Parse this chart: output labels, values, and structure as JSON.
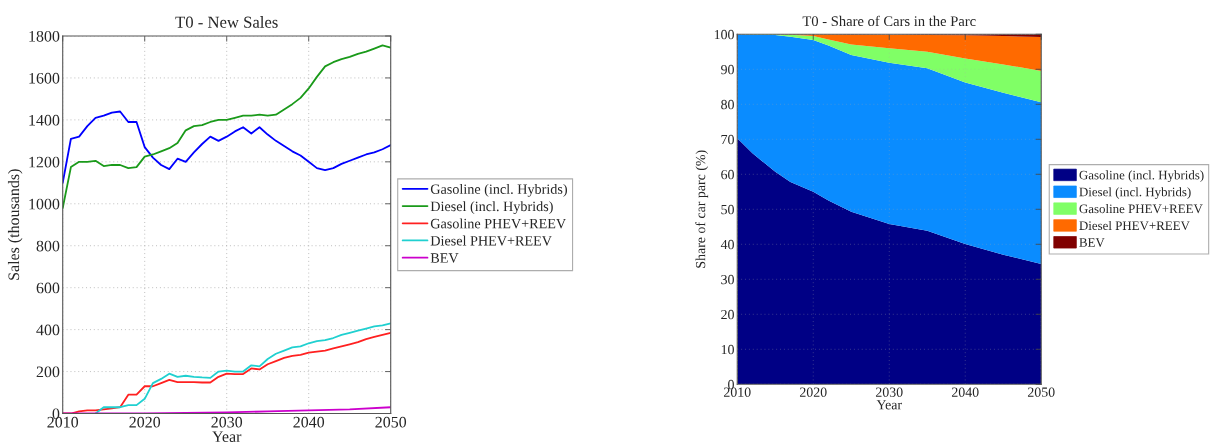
{
  "chart_data": [
    {
      "type": "line",
      "title": "T0 - New Sales",
      "xlabel": "Year",
      "ylabel": "Sales (thousands)",
      "x": [
        2010,
        2011,
        2012,
        2013,
        2014,
        2015,
        2016,
        2017,
        2018,
        2019,
        2020,
        2021,
        2022,
        2023,
        2024,
        2025,
        2026,
        2027,
        2028,
        2029,
        2030,
        2031,
        2032,
        2033,
        2034,
        2035,
        2036,
        2037,
        2038,
        2039,
        2040,
        2041,
        2042,
        2043,
        2044,
        2045,
        2046,
        2047,
        2048,
        2049,
        2050
      ],
      "series": [
        {
          "name": "Gasoline (incl. Hybrids)",
          "color": "#0000ff",
          "values": [
            1100,
            1310,
            1320,
            1370,
            1410,
            1420,
            1435,
            1440,
            1390,
            1390,
            1270,
            1220,
            1185,
            1165,
            1215,
            1200,
            1245,
            1285,
            1320,
            1300,
            1320,
            1345,
            1365,
            1335,
            1365,
            1330,
            1300,
            1275,
            1250,
            1230,
            1200,
            1170,
            1160,
            1170,
            1190,
            1205,
            1220,
            1235,
            1245,
            1260,
            1280
          ]
        },
        {
          "name": "Diesel (incl. Hybrids)",
          "color": "#1a9a1a",
          "values": [
            980,
            1175,
            1200,
            1200,
            1205,
            1180,
            1185,
            1185,
            1170,
            1175,
            1225,
            1235,
            1250,
            1265,
            1290,
            1350,
            1370,
            1375,
            1390,
            1400,
            1400,
            1410,
            1420,
            1420,
            1425,
            1420,
            1425,
            1450,
            1475,
            1505,
            1550,
            1605,
            1655,
            1675,
            1690,
            1700,
            1715,
            1725,
            1740,
            1755,
            1745
          ]
        },
        {
          "name": "Gasoline PHEV+REEV",
          "color": "#ff2020",
          "values": [
            0,
            0,
            10,
            15,
            15,
            20,
            25,
            30,
            90,
            90,
            130,
            130,
            145,
            160,
            150,
            150,
            150,
            148,
            148,
            175,
            190,
            188,
            188,
            215,
            210,
            235,
            250,
            265,
            275,
            280,
            290,
            295,
            300,
            310,
            320,
            330,
            340,
            355,
            365,
            375,
            385
          ]
        },
        {
          "name": "Diesel PHEV+REEV",
          "color": "#20d0d0",
          "values": [
            null,
            null,
            null,
            null,
            0,
            30,
            30,
            30,
            40,
            40,
            70,
            145,
            165,
            190,
            175,
            180,
            175,
            172,
            170,
            200,
            205,
            200,
            200,
            230,
            225,
            260,
            285,
            300,
            315,
            320,
            335,
            345,
            350,
            360,
            375,
            385,
            395,
            405,
            415,
            420,
            430
          ]
        },
        {
          "name": "BEV",
          "color": "#cc00cc",
          "x": [
            2010,
            2020,
            2030,
            2035,
            2040,
            2045,
            2050
          ],
          "values": [
            0,
            0,
            5,
            10,
            15,
            20,
            30
          ]
        }
      ],
      "xlim": [
        2010,
        2050
      ],
      "xticks": [
        2010,
        2020,
        2030,
        2040,
        2050
      ],
      "ylim": [
        0,
        1800
      ],
      "yticks": [
        0,
        200,
        400,
        600,
        800,
        1000,
        1200,
        1400,
        1600,
        1800
      ],
      "grid": true,
      "legend": "right"
    },
    {
      "type": "area",
      "stacked": true,
      "title": "T0 - Share of Cars in the Parc",
      "xlabel": "Year",
      "ylabel": "Share of car parc (%)",
      "x": [
        2010,
        2012,
        2015,
        2017,
        2020,
        2022,
        2025,
        2030,
        2035,
        2040,
        2045,
        2050
      ],
      "series": [
        {
          "name": "Gasoline (incl. Hybrids)",
          "color": "#000085",
          "values": [
            70.3,
            66.0,
            60.7,
            57.8,
            55.0,
            52.5,
            49.3,
            45.8,
            43.9,
            40.1,
            37.0,
            34.4
          ]
        },
        {
          "name": "Diesel (incl. Hybrids)",
          "color": "#0a8cff",
          "values": [
            29.7,
            33.9,
            39.1,
            41.5,
            43.4,
            44.3,
            44.8,
            46.1,
            46.4,
            46.1,
            46.3,
            46.2
          ]
        },
        {
          "name": "Gasoline PHEV+REEV",
          "color": "#80ff66",
          "values": [
            0,
            0.1,
            0.2,
            0.6,
            1.1,
            1.7,
            3.0,
            4.1,
            4.7,
            6.9,
            8.1,
            8.9
          ]
        },
        {
          "name": "Diesel PHEV+REEV",
          "color": "#ff6a00",
          "values": [
            0,
            0,
            0,
            0.1,
            0.5,
            1.5,
            2.8,
            3.8,
            4.8,
            6.6,
            8.1,
            9.7
          ]
        },
        {
          "name": "BEV",
          "color": "#800000",
          "values": [
            0,
            0,
            0,
            0,
            0,
            0,
            0.1,
            0.1,
            0.2,
            0.3,
            0.5,
            0.8
          ]
        }
      ],
      "xlim": [
        2010,
        2050
      ],
      "xticks": [
        2010,
        2020,
        2030,
        2040,
        2050
      ],
      "ylim": [
        0,
        100
      ],
      "yticks": [
        0,
        10,
        20,
        30,
        40,
        50,
        60,
        70,
        80,
        90,
        100
      ],
      "grid": true,
      "legend": "right"
    }
  ]
}
